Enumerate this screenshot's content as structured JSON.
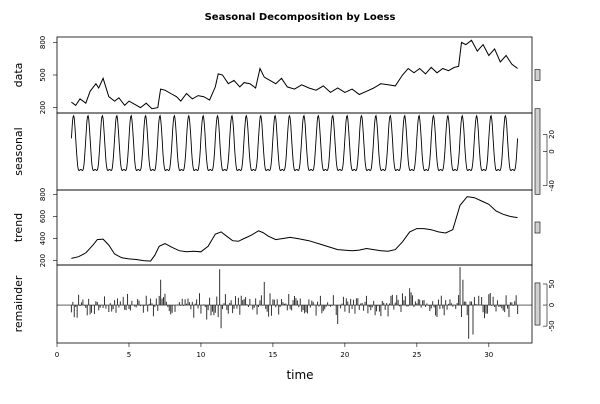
{
  "title": "Seasonal Decomposition by Loess",
  "x_label": "time",
  "chart_data": {
    "type": "line",
    "title": "Seasonal Decomposition by Loess",
    "xlabel": "time",
    "x_ticks": [
      0,
      5,
      10,
      15,
      20,
      25,
      30
    ],
    "xlim": [
      0,
      33
    ],
    "panels": [
      {
        "name": "data",
        "ylabel": "data",
        "style": "line",
        "axis_side": "left",
        "ylim": [
          150,
          850
        ],
        "ticks": [
          200,
          500,
          800
        ],
        "x": [
          1.0,
          1.3,
          1.6,
          2.0,
          2.3,
          2.7,
          2.9,
          3.2,
          3.6,
          4.0,
          4.3,
          4.7,
          5.0,
          5.4,
          5.8,
          6.2,
          6.6,
          7.0,
          7.2,
          7.5,
          7.9,
          8.3,
          8.6,
          9.0,
          9.4,
          9.8,
          10.2,
          10.6,
          11.0,
          11.2,
          11.5,
          11.9,
          12.3,
          12.7,
          13.0,
          13.4,
          13.8,
          14.1,
          14.4,
          14.8,
          15.2,
          15.6,
          16.0,
          16.5,
          17.0,
          17.5,
          18.0,
          18.5,
          19.0,
          19.5,
          20.0,
          20.5,
          21.0,
          21.5,
          22.0,
          22.5,
          23.0,
          23.5,
          24.0,
          24.4,
          24.8,
          25.2,
          25.6,
          26.0,
          26.4,
          26.8,
          27.2,
          27.6,
          27.9,
          28.1,
          28.4,
          28.8,
          29.2,
          29.6,
          30.0,
          30.4,
          30.8,
          31.2,
          31.6,
          32.0
        ],
        "y": [
          250,
          220,
          280,
          240,
          350,
          420,
          380,
          470,
          300,
          260,
          290,
          220,
          260,
          230,
          200,
          240,
          190,
          200,
          370,
          360,
          330,
          300,
          260,
          330,
          280,
          310,
          300,
          270,
          390,
          510,
          500,
          420,
          450,
          390,
          430,
          420,
          380,
          560,
          480,
          450,
          420,
          470,
          390,
          370,
          410,
          380,
          360,
          400,
          340,
          380,
          340,
          370,
          320,
          350,
          380,
          420,
          410,
          400,
          500,
          560,
          520,
          560,
          510,
          570,
          520,
          560,
          540,
          570,
          580,
          800,
          780,
          820,
          720,
          780,
          680,
          740,
          620,
          680,
          600,
          560
        ]
      },
      {
        "name": "seasonal",
        "ylabel": "seasonal",
        "style": "seasonal",
        "axis_side": "right",
        "ylim": [
          -45,
          45
        ],
        "ticks": [
          -40,
          0,
          20
        ],
        "period": 1.0,
        "phase": 0.15,
        "amplitude": 40
      },
      {
        "name": "trend",
        "ylabel": "trend",
        "style": "line",
        "axis_side": "left",
        "ylim": [
          160,
          840
        ],
        "ticks": [
          200,
          400,
          600,
          800
        ],
        "x": [
          1.0,
          1.5,
          2.0,
          2.5,
          2.8,
          3.2,
          3.6,
          4.0,
          4.5,
          5.0,
          5.5,
          6.0,
          6.5,
          6.8,
          7.1,
          7.5,
          8.0,
          8.5,
          9.0,
          9.5,
          10.0,
          10.5,
          11.0,
          11.4,
          11.8,
          12.2,
          12.6,
          13.0,
          13.5,
          14.0,
          14.3,
          14.7,
          15.2,
          15.7,
          16.2,
          16.7,
          17.5,
          18.5,
          19.5,
          20.5,
          21.0,
          21.5,
          22.0,
          22.5,
          23.0,
          23.5,
          24.0,
          24.5,
          25.0,
          25.5,
          26.0,
          26.5,
          27.0,
          27.5,
          28.0,
          28.5,
          29.0,
          29.5,
          30.0,
          30.5,
          31.0,
          31.5,
          32.0
        ],
        "y": [
          220,
          235,
          270,
          340,
          390,
          395,
          340,
          260,
          225,
          215,
          210,
          200,
          195,
          250,
          330,
          355,
          320,
          290,
          280,
          285,
          280,
          330,
          440,
          460,
          420,
          380,
          375,
          400,
          430,
          470,
          455,
          420,
          390,
          400,
          410,
          400,
          380,
          340,
          300,
          290,
          295,
          310,
          300,
          290,
          285,
          300,
          370,
          460,
          490,
          490,
          480,
          460,
          450,
          480,
          700,
          780,
          770,
          740,
          710,
          650,
          620,
          600,
          590
        ]
      },
      {
        "name": "remainder",
        "ylabel": "remainder",
        "style": "bars",
        "axis_side": "right",
        "ylim": [
          -90,
          95
        ],
        "ticks": [
          -50,
          0,
          50
        ],
        "step": 0.1,
        "start": 1.0,
        "count": 311,
        "seed": 7,
        "spikes": [
          [
            11.3,
            85
          ],
          [
            11.4,
            -55
          ],
          [
            28.0,
            90
          ],
          [
            28.2,
            60
          ],
          [
            28.6,
            -80
          ],
          [
            28.9,
            -70
          ],
          [
            14.4,
            55
          ],
          [
            7.2,
            60
          ],
          [
            24.5,
            40
          ],
          [
            19.5,
            -45
          ]
        ]
      }
    ],
    "scale_bars": [
      {
        "panel": "data",
        "units": 100
      },
      {
        "panel": "seasonal",
        "units": 100
      },
      {
        "panel": "trend",
        "units": 100
      },
      {
        "panel": "remainder",
        "units": 100
      }
    ]
  }
}
